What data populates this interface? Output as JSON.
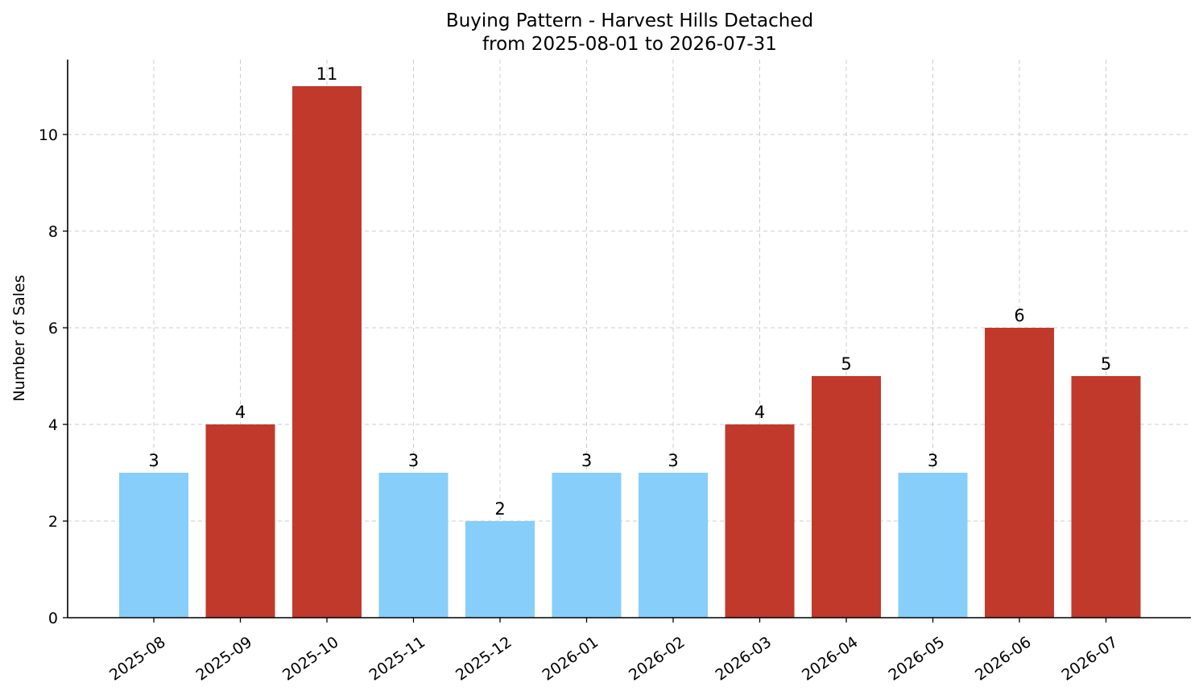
{
  "chart_data": {
    "type": "bar",
    "title": "Buying Pattern - Harvest Hills Detached",
    "subtitle": "from 2025-08-01 to 2026-07-31",
    "xlabel": "",
    "ylabel": "Number of Sales",
    "categories": [
      "2025-08",
      "2025-09",
      "2025-10",
      "2025-11",
      "2025-12",
      "2026-01",
      "2026-02",
      "2026-03",
      "2026-04",
      "2026-05",
      "2026-06",
      "2026-07"
    ],
    "values": [
      3,
      4,
      11,
      3,
      2,
      3,
      3,
      4,
      5,
      3,
      6,
      5
    ],
    "bar_colors": [
      "#87CEFA",
      "#C0392B",
      "#C0392B",
      "#87CEFA",
      "#87CEFA",
      "#87CEFA",
      "#87CEFA",
      "#C0392B",
      "#C0392B",
      "#87CEFA",
      "#C0392B",
      "#C0392B"
    ],
    "yticks": [
      0,
      2,
      4,
      6,
      8,
      10
    ],
    "ylim": [
      0,
      11.55
    ],
    "grid": true,
    "data_labels": true,
    "x_tick_rotation_deg": 35
  }
}
